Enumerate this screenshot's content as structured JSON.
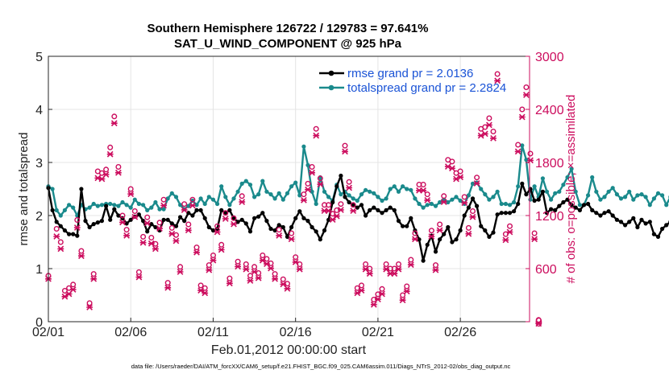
{
  "chart_data": {
    "type": "line",
    "title": "Southern Hemisphere 126722 / 129783 = 97.641%",
    "subtitle": "SAT_U_WIND_COMPONENT @ 925 hPa",
    "xlabel": "Feb.01,2012 00:00:00 start",
    "ylabel": "rmse and totalspread",
    "ylabel_right": "# of obs: o=possible; ×=assimilated",
    "footnote": "data file: /Users/raeder/DAI/ATM_forcXX/CAM6_setup/f.e21.FHIST_BGC.f09_025.CAM6assim.011/Diags_NTrS_2012-02/obs_diag_output.nc",
    "ylim": [
      0,
      5
    ],
    "ylim_right": [
      0,
      3000
    ],
    "xlim": [
      0,
      29.2
    ],
    "x_ticks": [
      0,
      5,
      10,
      15,
      20,
      25
    ],
    "x_tick_labels": [
      "02/01",
      "02/06",
      "02/11",
      "02/16",
      "02/21",
      "02/26"
    ],
    "y_ticks": [
      0,
      1,
      2,
      3,
      4,
      5
    ],
    "y_tick_labels": [
      "0",
      "1",
      "2",
      "3",
      "4",
      "5"
    ],
    "y_right_ticks": [
      0,
      600,
      1200,
      1800,
      2400,
      3000
    ],
    "y_right_tick_labels": [
      "0",
      "600",
      "1200",
      "1800",
      "2400",
      "3000"
    ],
    "legend_position": "top-right",
    "x_start": 0,
    "x_step": 0.25,
    "series": [
      {
        "name": "rmse grand pr = 2.0136",
        "color": "#000000",
        "values": [
          2.52,
          2.1,
          1.88,
          1.8,
          1.72,
          1.65,
          1.65,
          1.62,
          2.5,
          1.9,
          1.78,
          1.84,
          1.87,
          1.9,
          2.18,
          1.92,
          2.12,
          2.0,
          1.95,
          1.85,
          1.92,
          1.98,
          2.02,
          1.9,
          1.7,
          1.84,
          1.78,
          1.72,
          1.92,
          1.92,
          1.85,
          1.8,
          1.97,
          1.9,
          2.05,
          2.0,
          2.1,
          2.1,
          1.95,
          1.78,
          1.72,
          1.75,
          2.1,
          2.05,
          2.1,
          1.95,
          1.88,
          1.92,
          1.85,
          1.7,
          1.95,
          1.98,
          2.05,
          1.9,
          1.75,
          1.72,
          1.82,
          1.78,
          1.6,
          1.78,
          1.95,
          2.08,
          1.95,
          1.9,
          1.78,
          1.7,
          1.55,
          1.72,
          1.92,
          2.25,
          2.55,
          2.75,
          2.35,
          2.25,
          2.2,
          2.15,
          2.2,
          2.0,
          2.1,
          2.15,
          2.1,
          2.05,
          2.1,
          2.15,
          2.1,
          1.9,
          1.8,
          1.8,
          1.95,
          1.72,
          1.55,
          1.15,
          1.45,
          1.62,
          1.32,
          1.55,
          1.65,
          1.78,
          1.5,
          1.55,
          1.72,
          2.0,
          2.15,
          2.32,
          2.18,
          1.8,
          1.72,
          1.6,
          1.68,
          2.02,
          2.05,
          2.05,
          2.05,
          2.08,
          2.22,
          2.6,
          2.4,
          2.5,
          2.28,
          2.3,
          2.45,
          2.05,
          2.12,
          2.1,
          2.18,
          2.25,
          2.3,
          2.2,
          2.15,
          2.1,
          2.2,
          2.22,
          2.1,
          2.05,
          2.0,
          2.05,
          2.08,
          2.0,
          1.92,
          1.88,
          1.82,
          1.88,
          1.95,
          1.78,
          1.92,
          1.85,
          1.88,
          1.65,
          1.6,
          1.75,
          1.82,
          1.88,
          1.95,
          1.75,
          1.72,
          2.05,
          2.4,
          2.55,
          2.3,
          2.38,
          2.42,
          2.55,
          2.48,
          2.42,
          2.7,
          2.55,
          2.2,
          2.18,
          2.02,
          2.05,
          1.55,
          1.6,
          1.65,
          1.7,
          1.72,
          1.72,
          1.8,
          2.0,
          2.25,
          2.85,
          2.7,
          2.68
        ]
      },
      {
        "name": "totalspread grand pr = 2.2824",
        "color": "#1a8a8c",
        "values": [
          2.55,
          2.5,
          2.1,
          2.0,
          2.1,
          2.2,
          2.15,
          2.0,
          2.2,
          2.12,
          2.15,
          2.22,
          2.18,
          2.2,
          2.22,
          2.22,
          2.2,
          2.18,
          2.25,
          2.2,
          2.15,
          2.3,
          2.22,
          2.2,
          2.1,
          2.15,
          2.25,
          2.12,
          2.12,
          2.32,
          2.42,
          2.35,
          2.2,
          2.12,
          2.18,
          2.28,
          2.2,
          2.32,
          2.22,
          2.35,
          2.3,
          2.22,
          2.55,
          2.35,
          2.2,
          2.32,
          2.45,
          2.6,
          2.65,
          2.58,
          2.35,
          2.4,
          2.65,
          2.45,
          2.4,
          2.32,
          2.42,
          2.3,
          2.42,
          2.55,
          2.62,
          2.38,
          3.3,
          2.95,
          2.45,
          2.22,
          2.72,
          2.45,
          2.35,
          2.28,
          2.58,
          2.4,
          2.45,
          2.38,
          2.32,
          2.28,
          2.4,
          2.48,
          2.45,
          2.42,
          2.35,
          2.28,
          2.32,
          2.5,
          2.55,
          2.45,
          2.55,
          2.5,
          2.48,
          2.32,
          2.22,
          2.15,
          2.2,
          2.22,
          2.18,
          2.25,
          2.3,
          2.25,
          2.3,
          2.35,
          2.28,
          2.22,
          2.38,
          2.6,
          2.62,
          2.5,
          2.4,
          2.3,
          2.35,
          2.45,
          2.22,
          2.22,
          2.2,
          2.25,
          2.55,
          3.32,
          3.05,
          2.3,
          2.55,
          2.35,
          2.7,
          2.45,
          2.3,
          2.42,
          2.45,
          2.58,
          2.72,
          2.88,
          2.45,
          2.2,
          2.2,
          2.38,
          2.72,
          2.45,
          2.3,
          2.35,
          2.45,
          2.52,
          2.4,
          2.32,
          2.35,
          2.45,
          2.3,
          2.38,
          2.4,
          2.35,
          2.2,
          2.32,
          2.42,
          2.38,
          2.2,
          2.35,
          2.25,
          2.4,
          2.35,
          2.32,
          2.35,
          2.42,
          2.55,
          2.65,
          2.7,
          2.45,
          2.3,
          2.25,
          2.2,
          2.32,
          2.28,
          2.35,
          2.22,
          2.28,
          2.32,
          2.42,
          2.35,
          2.25,
          2.3,
          2.38,
          2.45,
          2.4,
          2.35,
          2.35,
          2.35,
          2.35
        ]
      }
    ],
    "obs_possible": [
      [
        0,
        520
      ],
      [
        0.5,
        1050
      ],
      [
        0.75,
        900
      ],
      [
        1.0,
        350
      ],
      [
        1.25,
        380
      ],
      [
        1.5,
        420
      ],
      [
        1.75,
        1150
      ],
      [
        2.0,
        800
      ],
      [
        2.5,
        210
      ],
      [
        2.75,
        540
      ],
      [
        3.0,
        1700
      ],
      [
        3.25,
        1680
      ],
      [
        3.5,
        1720
      ],
      [
        3.75,
        1970
      ],
      [
        4.0,
        2320
      ],
      [
        4.25,
        1750
      ],
      [
        4.5,
        1200
      ],
      [
        4.75,
        1040
      ],
      [
        5.0,
        1500
      ],
      [
        5.25,
        1250
      ],
      [
        5.5,
        560
      ],
      [
        5.75,
        960
      ],
      [
        6.0,
        1180
      ],
      [
        6.25,
        950
      ],
      [
        6.5,
        880
      ],
      [
        6.75,
        1120
      ],
      [
        7.0,
        1380
      ],
      [
        7.25,
        440
      ],
      [
        7.5,
        1060
      ],
      [
        7.75,
        980
      ],
      [
        8.0,
        620
      ],
      [
        8.25,
        1330
      ],
      [
        8.5,
        1100
      ],
      [
        8.75,
        1380
      ],
      [
        9.0,
        840
      ],
      [
        9.25,
        410
      ],
      [
        9.5,
        380
      ],
      [
        9.75,
        640
      ],
      [
        10.0,
        750
      ],
      [
        10.25,
        1080
      ],
      [
        10.5,
        870
      ],
      [
        10.75,
        1230
      ],
      [
        11.0,
        490
      ],
      [
        11.25,
        1170
      ],
      [
        11.5,
        680
      ],
      [
        11.75,
        1420
      ],
      [
        12.0,
        650
      ],
      [
        12.25,
        520
      ],
      [
        12.5,
        620
      ],
      [
        12.75,
        550
      ],
      [
        13.0,
        750
      ],
      [
        13.25,
        710
      ],
      [
        13.5,
        660
      ],
      [
        13.75,
        540
      ],
      [
        14.0,
        1040
      ],
      [
        14.25,
        480
      ],
      [
        14.5,
        430
      ],
      [
        14.75,
        1000
      ],
      [
        15.0,
        730
      ],
      [
        15.25,
        650
      ],
      [
        15.5,
        1440
      ],
      [
        15.75,
        1560
      ],
      [
        16.0,
        1750
      ],
      [
        16.25,
        2180
      ],
      [
        16.5,
        1620
      ],
      [
        16.75,
        1320
      ],
      [
        17.0,
        1320
      ],
      [
        17.25,
        1220
      ],
      [
        17.5,
        1260
      ],
      [
        17.75,
        1330
      ],
      [
        18.0,
        1990
      ],
      [
        18.25,
        1580
      ],
      [
        18.5,
        1320
      ],
      [
        18.75,
        380
      ],
      [
        19.0,
        410
      ],
      [
        19.25,
        650
      ],
      [
        19.5,
        600
      ],
      [
        19.75,
        250
      ],
      [
        20.0,
        310
      ],
      [
        20.25,
        370
      ],
      [
        20.5,
        650
      ],
      [
        20.75,
        600
      ],
      [
        21.0,
        600
      ],
      [
        21.25,
        650
      ],
      [
        21.5,
        300
      ],
      [
        21.75,
        400
      ],
      [
        22.0,
        700
      ],
      [
        22.25,
        1000
      ],
      [
        22.5,
        1550
      ],
      [
        22.75,
        1550
      ],
      [
        23.0,
        1440
      ],
      [
        23.25,
        1030
      ],
      [
        23.5,
        640
      ],
      [
        23.75,
        1100
      ],
      [
        24.0,
        1420
      ],
      [
        24.25,
        1830
      ],
      [
        24.5,
        1810
      ],
      [
        24.75,
        1680
      ],
      [
        25.0,
        1700
      ],
      [
        25.25,
        1410
      ],
      [
        25.5,
        1060
      ],
      [
        25.75,
        1250
      ],
      [
        26.0,
        1630
      ],
      [
        26.25,
        2180
      ],
      [
        26.5,
        2200
      ],
      [
        26.75,
        2300
      ],
      [
        27.0,
        2150
      ],
      [
        27.25,
        2800
      ],
      [
        27.75,
        990
      ],
      [
        28.0,
        1080
      ],
      [
        28.5,
        2000
      ],
      [
        28.75,
        2400
      ],
      [
        29.0,
        2650
      ],
      [
        29.25,
        1900
      ],
      [
        29.5,
        1000
      ],
      [
        29.75,
        20
      ]
    ],
    "obs_assimilated": [
      [
        0,
        520
      ],
      [
        0.5,
        1000
      ],
      [
        0.75,
        860
      ],
      [
        1.0,
        320
      ],
      [
        1.25,
        350
      ],
      [
        1.5,
        400
      ],
      [
        1.75,
        1100
      ],
      [
        2.0,
        780
      ],
      [
        2.5,
        200
      ],
      [
        2.75,
        520
      ],
      [
        3.0,
        1660
      ],
      [
        3.25,
        1650
      ],
      [
        3.5,
        1700
      ],
      [
        3.75,
        1930
      ],
      [
        4.0,
        2280
      ],
      [
        4.25,
        1720
      ],
      [
        4.5,
        1160
      ],
      [
        4.75,
        1010
      ],
      [
        5.0,
        1480
      ],
      [
        5.25,
        1220
      ],
      [
        5.5,
        540
      ],
      [
        5.75,
        930
      ],
      [
        6.0,
        1150
      ],
      [
        6.25,
        920
      ],
      [
        6.5,
        860
      ],
      [
        6.75,
        1090
      ],
      [
        7.0,
        1350
      ],
      [
        7.25,
        420
      ],
      [
        7.5,
        1030
      ],
      [
        7.75,
        950
      ],
      [
        8.0,
        600
      ],
      [
        8.25,
        1300
      ],
      [
        8.5,
        1070
      ],
      [
        8.75,
        1350
      ],
      [
        9.0,
        820
      ],
      [
        9.25,
        390
      ],
      [
        9.5,
        360
      ],
      [
        9.75,
        620
      ],
      [
        10.0,
        730
      ],
      [
        10.25,
        1050
      ],
      [
        10.5,
        850
      ],
      [
        10.75,
        1200
      ],
      [
        11.0,
        470
      ],
      [
        11.25,
        1140
      ],
      [
        11.5,
        660
      ],
      [
        11.75,
        1390
      ],
      [
        12.0,
        630
      ],
      [
        12.25,
        500
      ],
      [
        12.5,
        600
      ],
      [
        12.75,
        530
      ],
      [
        13.0,
        730
      ],
      [
        13.25,
        690
      ],
      [
        13.5,
        640
      ],
      [
        13.75,
        520
      ],
      [
        14.0,
        1010
      ],
      [
        14.25,
        460
      ],
      [
        14.5,
        410
      ],
      [
        14.75,
        970
      ],
      [
        15.0,
        710
      ],
      [
        15.25,
        630
      ],
      [
        15.5,
        1410
      ],
      [
        15.75,
        1530
      ],
      [
        16.0,
        1720
      ],
      [
        16.25,
        2140
      ],
      [
        16.5,
        1590
      ],
      [
        16.75,
        1290
      ],
      [
        17.0,
        1290
      ],
      [
        17.25,
        1190
      ],
      [
        17.5,
        1230
      ],
      [
        17.75,
        1300
      ],
      [
        18.0,
        1960
      ],
      [
        18.25,
        1550
      ],
      [
        18.5,
        1290
      ],
      [
        18.75,
        360
      ],
      [
        19.0,
        390
      ],
      [
        19.25,
        630
      ],
      [
        19.5,
        580
      ],
      [
        19.75,
        230
      ],
      [
        20.0,
        290
      ],
      [
        20.25,
        350
      ],
      [
        20.5,
        630
      ],
      [
        20.75,
        580
      ],
      [
        21.0,
        580
      ],
      [
        21.25,
        630
      ],
      [
        21.5,
        280
      ],
      [
        21.75,
        380
      ],
      [
        22.0,
        680
      ],
      [
        22.25,
        970
      ],
      [
        22.5,
        1520
      ],
      [
        22.75,
        1520
      ],
      [
        23.0,
        1410
      ],
      [
        23.25,
        1000
      ],
      [
        23.5,
        620
      ],
      [
        23.75,
        1070
      ],
      [
        24.0,
        1390
      ],
      [
        24.25,
        1790
      ],
      [
        24.5,
        1770
      ],
      [
        24.75,
        1650
      ],
      [
        25.0,
        1670
      ],
      [
        25.25,
        1380
      ],
      [
        25.5,
        1030
      ],
      [
        25.75,
        1220
      ],
      [
        26.0,
        1600
      ],
      [
        26.25,
        2140
      ],
      [
        26.5,
        2160
      ],
      [
        26.75,
        2260
      ],
      [
        27.0,
        2110
      ],
      [
        27.25,
        2760
      ],
      [
        27.75,
        960
      ],
      [
        28.0,
        1050
      ],
      [
        28.5,
        1960
      ],
      [
        28.75,
        2350
      ],
      [
        29.0,
        2600
      ],
      [
        29.25,
        1860
      ],
      [
        29.5,
        970
      ],
      [
        29.75,
        15
      ]
    ]
  }
}
